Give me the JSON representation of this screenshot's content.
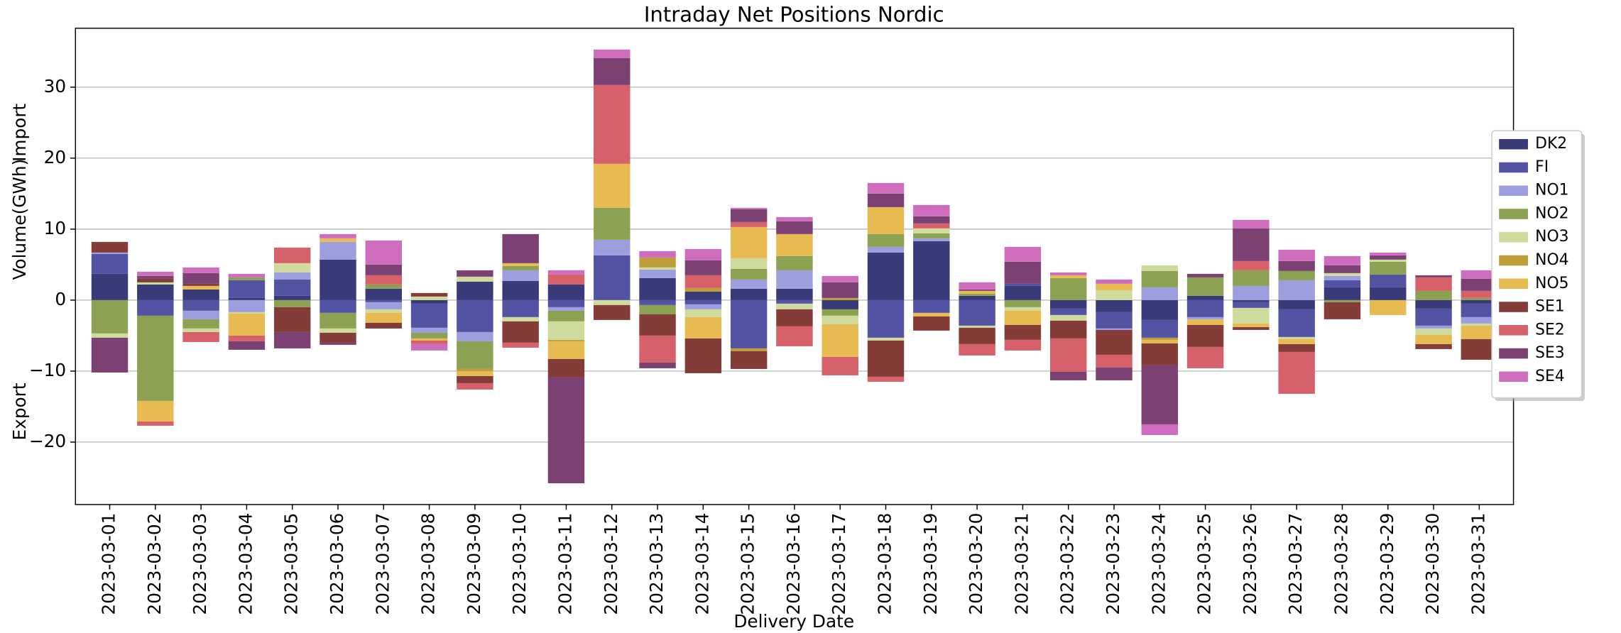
{
  "chart_data": {
    "type": "bar",
    "stacked": true,
    "title": "Intraday Net Positions Nordic",
    "xlabel": "Delivery Date",
    "ylabel": "Volume(GWh)",
    "annotations": [
      "Import",
      "Export"
    ],
    "categories": [
      "2023-03-01",
      "2023-03-02",
      "2023-03-03",
      "2023-03-04",
      "2023-03-05",
      "2023-03-06",
      "2023-03-07",
      "2023-03-08",
      "2023-03-09",
      "2023-03-10",
      "2023-03-11",
      "2023-03-12",
      "2023-03-13",
      "2023-03-14",
      "2023-03-15",
      "2023-03-16",
      "2023-03-17",
      "2023-03-18",
      "2023-03-19",
      "2023-03-20",
      "2023-03-21",
      "2023-03-22",
      "2023-03-23",
      "2023-03-24",
      "2023-03-25",
      "2023-03-26",
      "2023-03-27",
      "2023-03-28",
      "2023-03-29",
      "2023-03-30",
      "2023-03-31"
    ],
    "series": [
      {
        "name": "DK2",
        "color": "#393b79",
        "values": [
          3.7,
          2.2,
          1.5,
          0.3,
          0.6,
          5.7,
          1.6,
          -0.5,
          2.6,
          2.7,
          2.2,
          0,
          3.1,
          1.2,
          1.6,
          1.6,
          -1.3,
          6.7,
          8.3,
          0.6,
          2.0,
          -1.2,
          -1.7,
          -2.8,
          0.6,
          -0.3,
          -1.3,
          1.8,
          1.8,
          -1.2,
          -0.5
        ]
      },
      {
        "name": "FI",
        "color": "#5254a3",
        "values": [
          2.8,
          -2.2,
          -1.5,
          2.5,
          2.3,
          -1.8,
          -0.3,
          -3.4,
          -4.5,
          -2.4,
          -1.0,
          6.3,
          -0.7,
          -0.6,
          -6.8,
          -0.5,
          0,
          -5.3,
          -1.8,
          -3.6,
          0.3,
          -0.9,
          -2.3,
          -2.5,
          -2.4,
          -0.8,
          -3.9,
          1.0,
          1.8,
          -2.4,
          -1.9
        ]
      },
      {
        "name": "NO1",
        "color": "#9c9ede",
        "values": [
          0.2,
          0,
          -1.2,
          -1.7,
          1.0,
          2.5,
          -1.0,
          -0.7,
          -1.3,
          1.5,
          -0.5,
          2.2,
          1.2,
          -0.7,
          1.3,
          2.6,
          0,
          0.8,
          0.4,
          0,
          0,
          0,
          -0.2,
          1.8,
          -0.3,
          2.0,
          2.8,
          0.6,
          0,
          -0.4,
          -0.9
        ]
      },
      {
        "name": "NO2",
        "color": "#8ca252",
        "values": [
          -4.7,
          -12.0,
          -1.3,
          0.4,
          -1.0,
          -2.2,
          0.6,
          -0.8,
          -3.9,
          0.6,
          -1.5,
          4.5,
          -1.3,
          0,
          1.5,
          2.0,
          -0.9,
          1.8,
          0.7,
          0.3,
          -1.0,
          3.1,
          0,
          2.3,
          2.6,
          2.2,
          1.3,
          -0.3,
          1.8,
          1.3,
          0.3
        ]
      },
      {
        "name": "NO3",
        "color": "#cedb9c",
        "values": [
          -0.6,
          0.3,
          -0.5,
          -0.2,
          1.3,
          -0.6,
          -0.5,
          0.5,
          0.7,
          -0.6,
          -2.6,
          -0.7,
          0.3,
          -1.1,
          1.5,
          -0.8,
          -1.2,
          -0.4,
          0.7,
          -0.3,
          -0.5,
          -0.8,
          1.4,
          0.8,
          0,
          -2.2,
          -0.3,
          0.4,
          0.3,
          -0.9,
          -0.3
        ]
      },
      {
        "name": "NO4",
        "color": "#bd9e39",
        "values": [
          0,
          0,
          0,
          0,
          0,
          0,
          0,
          0,
          -0.3,
          0,
          -0.2,
          0,
          1.4,
          0.5,
          -0.4,
          0,
          0.3,
          0,
          0,
          0,
          0,
          0,
          0,
          -0.3,
          0,
          0,
          0,
          0,
          0,
          0,
          0
        ]
      },
      {
        "name": "NO5",
        "color": "#e7ba52",
        "values": [
          0,
          -2.9,
          0.5,
          -3.1,
          0,
          0.5,
          -1.4,
          -0.3,
          -0.7,
          0.4,
          -2.5,
          6.2,
          0,
          -3.0,
          4.4,
          3.1,
          -4.6,
          3.8,
          -0.5,
          0.4,
          -2.0,
          0.4,
          0.9,
          -0.5,
          -0.8,
          -0.5,
          -0.7,
          0,
          -2.1,
          -1.3,
          -1.9
        ]
      },
      {
        "name": "SE1",
        "color": "#843c39",
        "values": [
          1.5,
          0.5,
          0.3,
          0,
          -3.5,
          -1.4,
          -0.8,
          0.5,
          -1.0,
          -3.0,
          -2.6,
          -2.1,
          -3.0,
          -4.9,
          -2.5,
          -2.4,
          0,
          -5.1,
          -2.0,
          -2.3,
          -2.1,
          -2.5,
          -3.5,
          -3.1,
          -3.1,
          -0.4,
          -1.1,
          -2.4,
          0,
          -0.7,
          -2.9
        ]
      },
      {
        "name": "SE2",
        "color": "#d6616b",
        "values": [
          0,
          -0.6,
          -1.4,
          -0.8,
          2.2,
          0,
          1.3,
          -0.5,
          -0.9,
          -0.7,
          1.4,
          11.1,
          -3.8,
          1.8,
          0.7,
          -2.8,
          -2.6,
          -0.7,
          0.7,
          -1.6,
          -1.5,
          -4.7,
          -1.8,
          0,
          -3.0,
          1.3,
          -5.9,
          0,
          0,
          1.9,
          1.0
        ]
      },
      {
        "name": "SE3",
        "color": "#7b4173",
        "values": [
          -4.9,
          0.4,
          1.5,
          -1.2,
          -2.3,
          -0.3,
          1.5,
          0,
          0.9,
          4.1,
          -14.9,
          3.8,
          -0.8,
          2.1,
          1.8,
          1.8,
          2.2,
          1.9,
          1.0,
          0.2,
          3.1,
          -1.2,
          -1.8,
          -8.3,
          0.5,
          4.6,
          1.4,
          1.1,
          0.6,
          0.3,
          1.7
        ]
      },
      {
        "name": "SE4",
        "color": "#ce6dbd",
        "values": [
          0,
          0.6,
          0.8,
          0.5,
          0,
          0.6,
          3.4,
          -0.9,
          0,
          0,
          0.6,
          1.2,
          0.9,
          1.6,
          0.2,
          0.6,
          0.9,
          1.5,
          1.6,
          1.0,
          2.1,
          0.4,
          0.6,
          -1.5,
          0,
          1.2,
          1.6,
          1.3,
          0.4,
          0,
          1.2
        ]
      }
    ],
    "ylim": [
      -28.8,
      38.3
    ],
    "yticks": [
      {
        "value": -20,
        "label": "−20"
      },
      {
        "value": -10,
        "label": "−10"
      },
      0,
      10,
      20,
      30
    ],
    "grid": true,
    "legend": "center right"
  }
}
